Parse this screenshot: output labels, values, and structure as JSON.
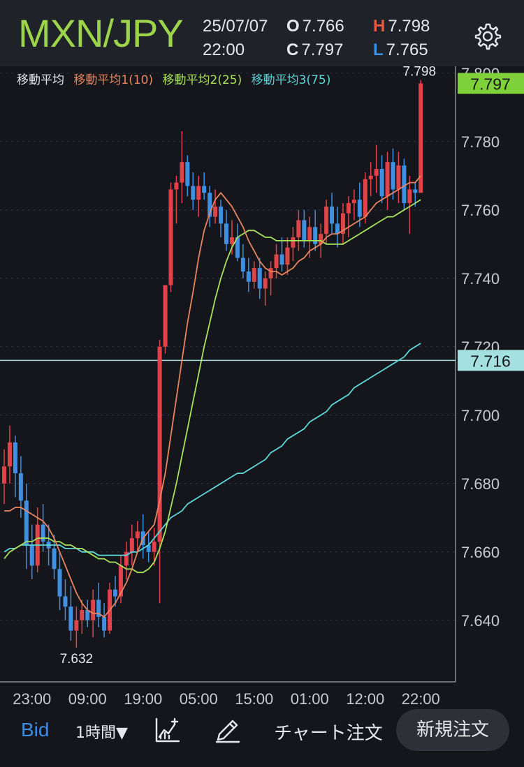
{
  "header": {
    "pair": "MXN/JPY",
    "date": "25/07/07",
    "time": "22:00",
    "open_label": "O",
    "open": "7.766",
    "close_label": "C",
    "close": "7.797",
    "high_label": "H",
    "high": "7.798",
    "low_label": "L",
    "low": "7.765"
  },
  "legend": {
    "base": "移動平均",
    "ma1": "移動平均1(10)",
    "ma2": "移動平均2(25)",
    "ma3": "移動平均3(75)"
  },
  "colors": {
    "up": "#e0434a",
    "down": "#3f8fe3",
    "ma1": "#e8855f",
    "ma2": "#a9e35c",
    "ma3": "#5cd6d6",
    "pair": "#9bd34a",
    "current_price_bg": "#7fd13a",
    "level_line": "#a4e0e0"
  },
  "footer": {
    "bid": "Bid",
    "period": "1時間▼",
    "chart_order": "チャート注文",
    "new_order": "新規注文",
    "icons": [
      "chart-indicator-icon",
      "pen-draw-icon"
    ]
  },
  "chart_data": {
    "type": "candlestick",
    "instrument": "MXN/JPY",
    "timeframe": "1時間",
    "ylim": [
      7.622,
      7.802
    ],
    "yticks": [
      "7.640",
      "7.660",
      "7.680",
      "7.700",
      "7.720",
      "7.740",
      "7.760",
      "7.780",
      "7.800"
    ],
    "xticks": [
      "23:00",
      "09:00",
      "19:00",
      "05:00",
      "15:00",
      "01:00",
      "12:00",
      "22:00"
    ],
    "xtick_index": [
      5,
      15,
      25,
      35,
      45,
      55,
      65,
      75
    ],
    "current_price": "7.797",
    "level_price": "7.716",
    "max_label": "7.798",
    "min_label": "7.632",
    "candles": [
      [
        7.68,
        7.69,
        7.674,
        7.685
      ],
      [
        7.685,
        7.697,
        7.68,
        7.692
      ],
      [
        7.692,
        7.694,
        7.676,
        7.683
      ],
      [
        7.683,
        7.688,
        7.67,
        7.675
      ],
      [
        7.675,
        7.68,
        7.655,
        7.662
      ],
      [
        7.662,
        7.668,
        7.652,
        7.656
      ],
      [
        7.656,
        7.673,
        7.654,
        7.668
      ],
      [
        7.668,
        7.674,
        7.66,
        7.663
      ],
      [
        7.663,
        7.668,
        7.656,
        7.661
      ],
      [
        7.661,
        7.665,
        7.652,
        7.655
      ],
      [
        7.655,
        7.66,
        7.643,
        7.647
      ],
      [
        7.647,
        7.652,
        7.64,
        7.644
      ],
      [
        7.644,
        7.65,
        7.634,
        7.637
      ],
      [
        7.637,
        7.644,
        7.632,
        7.64
      ],
      [
        7.64,
        7.646,
        7.636,
        7.643
      ],
      [
        7.643,
        7.646,
        7.638,
        7.64
      ],
      [
        7.64,
        7.649,
        7.635,
        7.646
      ],
      [
        7.646,
        7.651,
        7.638,
        7.641
      ],
      [
        7.641,
        7.645,
        7.635,
        7.637
      ],
      [
        7.637,
        7.651,
        7.636,
        7.649
      ],
      [
        7.649,
        7.653,
        7.644,
        7.647
      ],
      [
        7.647,
        7.659,
        7.645,
        7.656
      ],
      [
        7.656,
        7.663,
        7.652,
        7.66
      ],
      [
        7.66,
        7.668,
        7.656,
        7.664
      ],
      [
        7.664,
        7.669,
        7.66,
        7.666
      ],
      [
        7.666,
        7.671,
        7.658,
        7.662
      ],
      [
        7.662,
        7.666,
        7.657,
        7.66
      ],
      [
        7.66,
        7.667,
        7.656,
        7.663
      ],
      [
        7.663,
        7.722,
        7.645,
        7.72
      ],
      [
        7.72,
        7.738,
        7.718,
        7.738
      ],
      [
        7.738,
        7.768,
        7.736,
        7.766
      ],
      [
        7.766,
        7.77,
        7.756,
        7.768
      ],
      [
        7.768,
        7.783,
        7.762,
        7.774
      ],
      [
        7.774,
        7.776,
        7.764,
        7.767
      ],
      [
        7.767,
        7.771,
        7.76,
        7.763
      ],
      [
        7.763,
        7.77,
        7.758,
        7.767
      ],
      [
        7.767,
        7.771,
        7.763,
        7.765
      ],
      [
        7.765,
        7.767,
        7.755,
        7.758
      ],
      [
        7.758,
        7.766,
        7.756,
        7.761
      ],
      [
        7.761,
        7.763,
        7.752,
        7.756
      ],
      [
        7.756,
        7.76,
        7.748,
        7.75
      ],
      [
        7.75,
        7.757,
        7.747,
        7.752
      ],
      [
        7.752,
        7.756,
        7.745,
        7.746
      ],
      [
        7.746,
        7.75,
        7.74,
        7.742
      ],
      [
        7.742,
        7.746,
        7.736,
        7.739
      ],
      [
        7.739,
        7.745,
        7.737,
        7.743
      ],
      [
        7.743,
        7.746,
        7.734,
        7.737
      ],
      [
        7.737,
        7.742,
        7.732,
        7.74
      ],
      [
        7.74,
        7.745,
        7.735,
        7.743
      ],
      [
        7.743,
        7.75,
        7.74,
        7.747
      ],
      [
        7.747,
        7.752,
        7.742,
        7.744
      ],
      [
        7.744,
        7.752,
        7.741,
        7.749
      ],
      [
        7.749,
        7.755,
        7.745,
        7.752
      ],
      [
        7.752,
        7.76,
        7.748,
        7.757
      ],
      [
        7.757,
        7.76,
        7.749,
        7.751
      ],
      [
        7.751,
        7.758,
        7.746,
        7.755
      ],
      [
        7.755,
        7.76,
        7.748,
        7.75
      ],
      [
        7.75,
        7.756,
        7.746,
        7.753
      ],
      [
        7.753,
        7.763,
        7.75,
        7.761
      ],
      [
        7.761,
        7.765,
        7.753,
        7.756
      ],
      [
        7.756,
        7.761,
        7.749,
        7.753
      ],
      [
        7.753,
        7.762,
        7.75,
        7.759
      ],
      [
        7.759,
        7.764,
        7.752,
        7.762
      ],
      [
        7.762,
        7.766,
        7.757,
        7.763
      ],
      [
        7.763,
        7.768,
        7.755,
        7.758
      ],
      [
        7.758,
        7.771,
        7.756,
        7.769
      ],
      [
        7.769,
        7.774,
        7.764,
        7.77
      ],
      [
        7.77,
        7.779,
        7.765,
        7.772
      ],
      [
        7.772,
        7.776,
        7.762,
        7.764
      ],
      [
        7.764,
        7.777,
        7.76,
        7.774
      ],
      [
        7.774,
        7.778,
        7.763,
        7.766
      ],
      [
        7.766,
        7.777,
        7.762,
        7.773
      ],
      [
        7.773,
        7.775,
        7.76,
        7.762
      ],
      [
        7.762,
        7.77,
        7.753,
        7.766
      ],
      [
        7.766,
        7.768,
        7.761,
        7.765
      ],
      [
        7.765,
        7.798,
        7.765,
        7.797
      ]
    ],
    "ma1": [
      7.672,
      7.672,
      7.673,
      7.673,
      7.672,
      7.671,
      7.67,
      7.669,
      7.667,
      7.664,
      7.66,
      7.656,
      7.652,
      7.648,
      7.645,
      7.643,
      7.642,
      7.642,
      7.641,
      7.643,
      7.645,
      7.648,
      7.651,
      7.655,
      7.66,
      7.664,
      7.666,
      7.668,
      7.675,
      7.683,
      7.694,
      7.705,
      7.716,
      7.727,
      7.736,
      7.746,
      7.754,
      7.759,
      7.763,
      7.765,
      7.763,
      7.761,
      7.758,
      7.755,
      7.751,
      7.748,
      7.745,
      7.743,
      7.742,
      7.742,
      7.741,
      7.742,
      7.743,
      7.745,
      7.746,
      7.748,
      7.749,
      7.75,
      7.752,
      7.753,
      7.753,
      7.754,
      7.755,
      7.756,
      7.757,
      7.758,
      7.76,
      7.762,
      7.763,
      7.764,
      7.765,
      7.766,
      7.767,
      7.768,
      7.768,
      7.77
    ],
    "ma2": [
      7.658,
      7.66,
      7.661,
      7.662,
      7.663,
      7.663,
      7.664,
      7.664,
      7.664,
      7.663,
      7.663,
      7.662,
      7.662,
      7.661,
      7.661,
      7.66,
      7.659,
      7.658,
      7.658,
      7.657,
      7.657,
      7.656,
      7.655,
      7.655,
      7.654,
      7.654,
      7.655,
      7.657,
      7.661,
      7.666,
      7.673,
      7.68,
      7.688,
      7.696,
      7.704,
      7.712,
      7.72,
      7.727,
      7.734,
      7.74,
      7.745,
      7.749,
      7.752,
      7.753,
      7.754,
      7.754,
      7.753,
      7.752,
      7.752,
      7.751,
      7.751,
      7.751,
      7.751,
      7.751,
      7.751,
      7.751,
      7.751,
      7.751,
      7.75,
      7.75,
      7.75,
      7.75,
      7.751,
      7.752,
      7.753,
      7.754,
      7.755,
      7.756,
      7.757,
      7.758,
      7.758,
      7.759,
      7.76,
      7.761,
      7.762,
      7.763
    ],
    "ma3": [
      7.66,
      7.661,
      7.661,
      7.662,
      7.662,
      7.662,
      7.662,
      7.662,
      7.662,
      7.662,
      7.662,
      7.661,
      7.661,
      7.661,
      7.66,
      7.66,
      7.66,
      7.659,
      7.659,
      7.659,
      7.659,
      7.659,
      7.659,
      7.66,
      7.66,
      7.661,
      7.662,
      7.664,
      7.666,
      7.668,
      7.67,
      7.671,
      7.672,
      7.674,
      7.675,
      7.676,
      7.677,
      7.678,
      7.679,
      7.68,
      7.681,
      7.682,
      7.683,
      7.683,
      7.684,
      7.685,
      7.686,
      7.687,
      7.689,
      7.69,
      7.691,
      7.693,
      7.694,
      7.695,
      7.696,
      7.698,
      7.699,
      7.7,
      7.701,
      7.703,
      7.704,
      7.705,
      7.706,
      7.708,
      7.709,
      7.71,
      7.711,
      7.712,
      7.713,
      7.714,
      7.715,
      7.716,
      7.717,
      7.719,
      7.72,
      7.721
    ]
  }
}
